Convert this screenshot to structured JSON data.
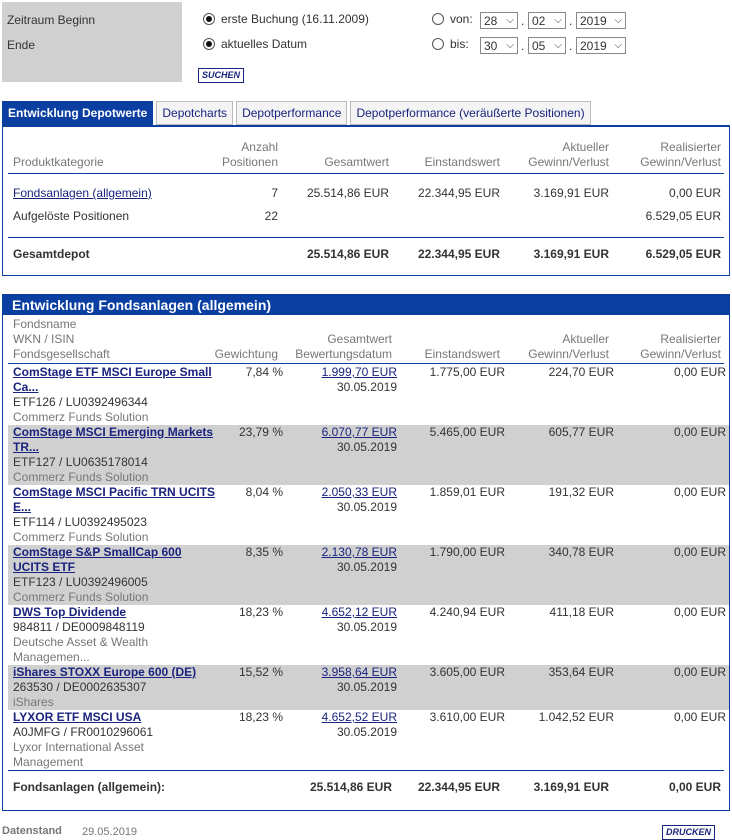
{
  "filter": {
    "label_begin": "Zeitraum Beginn",
    "label_end": "Ende",
    "opt_first": "erste Buchung (16.11.2009)",
    "opt_current": "aktuelles Datum",
    "von_label": "von:",
    "bis_label": "bis:",
    "von": {
      "day": "28",
      "month": "02",
      "year": "2019"
    },
    "bis": {
      "day": "30",
      "month": "05",
      "year": "2019"
    },
    "search_button": "SUCHEN"
  },
  "tabs": [
    {
      "label": "Entwicklung Depotwerte",
      "active": true
    },
    {
      "label": "Depotcharts",
      "active": false
    },
    {
      "label": "Depotperformance",
      "active": false
    },
    {
      "label": "Depotperformance (veräußerte Positionen)",
      "active": false
    }
  ],
  "summary": {
    "headers": {
      "kategorie": "Produktkategorie",
      "anzahl1": "Anzahl",
      "anzahl2": "Positionen",
      "gesamtwert": "Gesamtwert",
      "einstandswert": "Einstandswert",
      "akt1": "Aktueller",
      "akt2": "Gewinn/Verlust",
      "real1": "Realisierter",
      "real2": "Gewinn/Verlust"
    },
    "rows": [
      {
        "name": "Fondsanlagen (allgemein)",
        "count": "7",
        "gesamtwert": "25.514,86 EUR",
        "einstandswert": "22.344,95 EUR",
        "akt": "3.169,91 EUR",
        "real": "0,00 EUR"
      },
      {
        "name": "Aufgelöste Positionen",
        "count": "22",
        "gesamtwert": "",
        "einstandswert": "",
        "akt": "",
        "real": "6.529,05 EUR"
      }
    ],
    "total": {
      "name": "Gesamtdepot",
      "gesamtwert": "25.514,86 EUR",
      "einstandswert": "22.344,95 EUR",
      "akt": "3.169,91 EUR",
      "real": "6.529,05 EUR"
    }
  },
  "funds_section": {
    "title": "Entwicklung Fondsanlagen (allgemein)",
    "headers": {
      "name1": "Fondsname",
      "name2": "WKN / ISIN",
      "name3": "Fondsgesellschaft",
      "gewichtung": "Gewichtung",
      "gw1": "Gesamtwert",
      "gw2": "Bewertungsdatum",
      "einstandswert": "Einstandswert",
      "akt1": "Aktueller",
      "akt2": "Gewinn/Verlust",
      "real1": "Realisierter",
      "real2": "Gewinn/Verlust"
    },
    "funds": [
      {
        "name1": "ComStage ETF MSCI Europe Small",
        "name2": "Ca...",
        "wkn": "ETF126 /  LU0392496344",
        "gesellschaft1": "Commerz Funds Solution",
        "gesellschaft2": "",
        "gewichtung": "7,84 %",
        "gesamtwert": "1.999,70 EUR",
        "datum": "30.05.2019",
        "einstandswert": "1.775,00 EUR",
        "akt": "224,70 EUR",
        "real": "0,00 EUR"
      },
      {
        "name1": "ComStage MSCI Emerging Markets",
        "name2": "TR...",
        "wkn": "ETF127 /  LU0635178014",
        "gesellschaft1": "Commerz Funds Solution",
        "gesellschaft2": "",
        "gewichtung": "23,79 %",
        "gesamtwert": "6.070,77 EUR",
        "datum": "30.05.2019",
        "einstandswert": "5.465,00 EUR",
        "akt": "605,77 EUR",
        "real": "0,00 EUR"
      },
      {
        "name1": "ComStage MSCI Pacific TRN UCITS",
        "name2": "E...",
        "wkn": "ETF114 /  LU0392495023",
        "gesellschaft1": "Commerz Funds Solution",
        "gesellschaft2": "",
        "gewichtung": "8,04 %",
        "gesamtwert": "2.050,33 EUR",
        "datum": "30.05.2019",
        "einstandswert": "1.859,01 EUR",
        "akt": "191,32 EUR",
        "real": "0,00 EUR"
      },
      {
        "name1": "ComStage S&P SmallCap 600",
        "name2": "UCITS ETF",
        "wkn": "ETF123 /  LU0392496005",
        "gesellschaft1": "Commerz Funds Solution",
        "gesellschaft2": "",
        "gewichtung": "8,35 %",
        "gesamtwert": "2.130,78 EUR",
        "datum": "30.05.2019",
        "einstandswert": "1.790,00 EUR",
        "akt": "340,78 EUR",
        "real": "0,00 EUR"
      },
      {
        "name1": "DWS Top Dividende",
        "name2": "",
        "wkn": "984811 /  DE0009848119",
        "gesellschaft1": "Deutsche Asset & Wealth",
        "gesellschaft2": "Managemen...",
        "gewichtung": "18,23 %",
        "gesamtwert": "4.652,12 EUR",
        "datum": "30.05.2019",
        "einstandswert": "4.240,94 EUR",
        "akt": "411,18 EUR",
        "real": "0,00 EUR"
      },
      {
        "name1": "iShares STOXX Europe 600 (DE)",
        "name2": "",
        "wkn": "263530 /  DE0002635307",
        "gesellschaft1": "iShares",
        "gesellschaft2": "",
        "gewichtung": "15,52 %",
        "gesamtwert": "3.958,64 EUR",
        "datum": "30.05.2019",
        "einstandswert": "3.605,00 EUR",
        "akt": "353,64 EUR",
        "real": "0,00 EUR"
      },
      {
        "name1": "LYXOR ETF MSCI USA",
        "name2": "",
        "wkn": "A0JMFG /  FR0010296061",
        "gesellschaft1": "Lyxor International Asset",
        "gesellschaft2": "Management",
        "gewichtung": "18,23 %",
        "gesamtwert": "4.652,52 EUR",
        "datum": "30.05.2019",
        "einstandswert": "3.610,00 EUR",
        "akt": "1.042,52 EUR",
        "real": "0,00 EUR"
      }
    ],
    "total": {
      "name": "Fondsanlagen (allgemein):",
      "gesamtwert": "25.514,86 EUR",
      "einstandswert": "22.344,95 EUR",
      "akt": "3.169,91 EUR",
      "real": "0,00 EUR"
    }
  },
  "footer": {
    "datenstand_label": "Datenstand",
    "datenstand_value": "29.05.2019",
    "print_button": "DRUCKEN"
  }
}
